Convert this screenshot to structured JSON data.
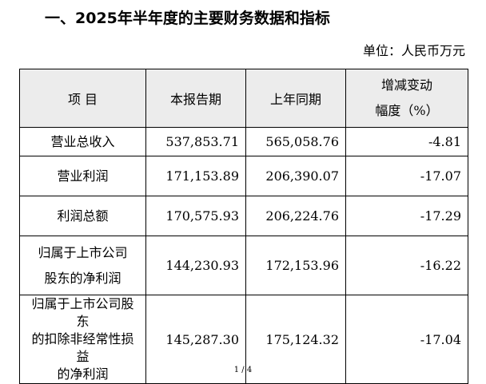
{
  "heading": "一、2025年半年度的主要财务数据和指标",
  "unit": "单位：人民币万元",
  "table": {
    "headers": [
      "项  目",
      "本报告期",
      "上年同期",
      "增减变动",
      "幅度（%）"
    ],
    "rows": [
      {
        "label": [
          "营业总收入"
        ],
        "current": "537,853.71",
        "prior": "565,058.76",
        "change": "-4.81"
      },
      {
        "label": [
          "营业利润"
        ],
        "current": "171,153.89",
        "prior": "206,390.07",
        "change": "-17.07"
      },
      {
        "label": [
          "利润总额"
        ],
        "current": "170,575.93",
        "prior": "206,224.76",
        "change": "-17.29"
      },
      {
        "label": [
          "归属于上市公司",
          "股东的净利润"
        ],
        "current": "144,230.93",
        "prior": "172,153.96",
        "change": "-16.22"
      },
      {
        "label": [
          "归属于上市公司股东",
          "的扣除非经常性损益",
          "的净利润"
        ],
        "current": "145,287.30",
        "prior": "175,124.32",
        "change": "-17.04"
      }
    ]
  },
  "page_number": "1 / 4"
}
